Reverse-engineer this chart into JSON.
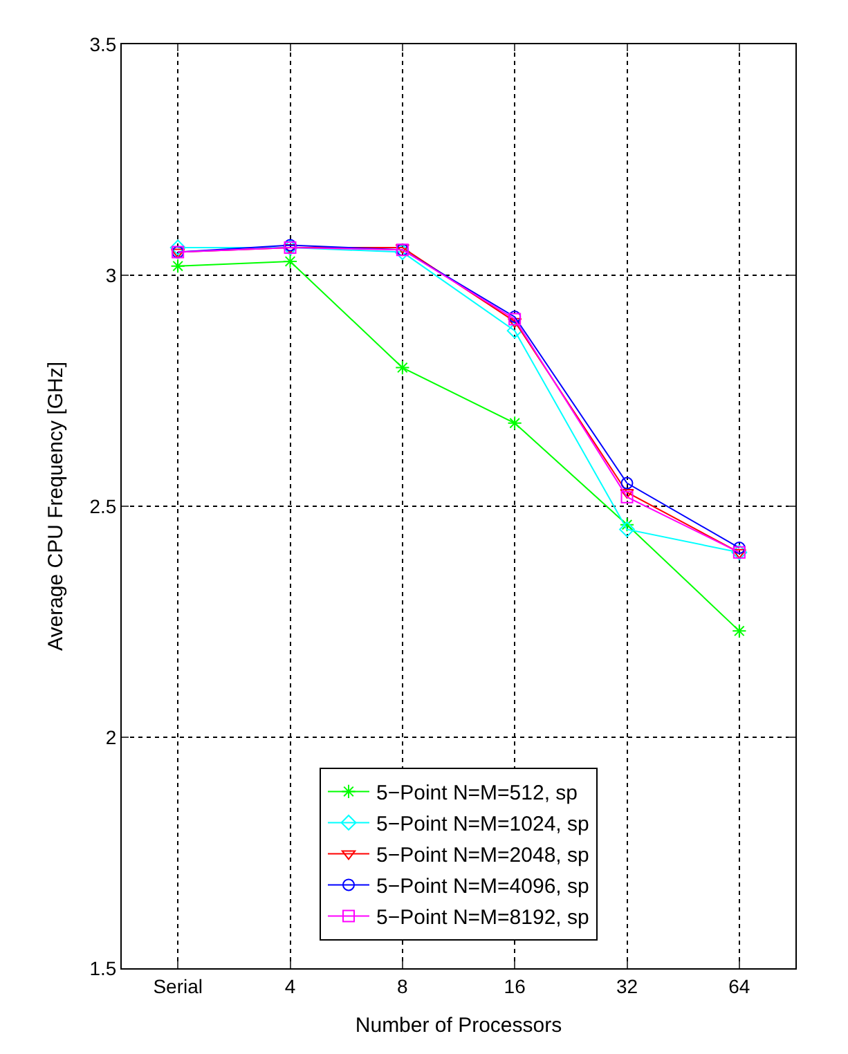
{
  "chart_data": {
    "type": "line",
    "xlabel": "Number of Processors",
    "ylabel": "Average CPU Frequency [GHz]",
    "categories": [
      "Serial",
      "4",
      "8",
      "16",
      "32",
      "64"
    ],
    "series": [
      {
        "name": "5−Point N=M=512, sp",
        "color": "#00ff00",
        "marker": "cross",
        "values": [
          3.02,
          3.03,
          2.8,
          2.68,
          2.46,
          2.23
        ]
      },
      {
        "name": "5−Point N=M=1024, sp",
        "color": "#00ffff",
        "marker": "diamond",
        "values": [
          3.06,
          3.06,
          3.05,
          2.88,
          2.45,
          2.4
        ]
      },
      {
        "name": "5−Point N=M=2048, sp",
        "color": "#ff0000",
        "marker": "triangle",
        "values": [
          3.05,
          3.06,
          3.06,
          2.9,
          2.53,
          2.4
        ]
      },
      {
        "name": "5−Point N=M=4096, sp",
        "color": "#0000ff",
        "marker": "circle",
        "values": [
          3.05,
          3.065,
          3.055,
          2.91,
          2.55,
          2.41
        ]
      },
      {
        "name": "5−Point N=M=8192, sp",
        "color": "#ff00ff",
        "marker": "square",
        "values": [
          3.05,
          3.06,
          3.055,
          2.905,
          2.52,
          2.4
        ]
      }
    ],
    "ylim": [
      1.5,
      3.5
    ],
    "yticks": [
      1.5,
      2,
      2.5,
      3,
      3.5
    ],
    "grid": true,
    "legend": "bottom",
    "line_style": "solid"
  }
}
